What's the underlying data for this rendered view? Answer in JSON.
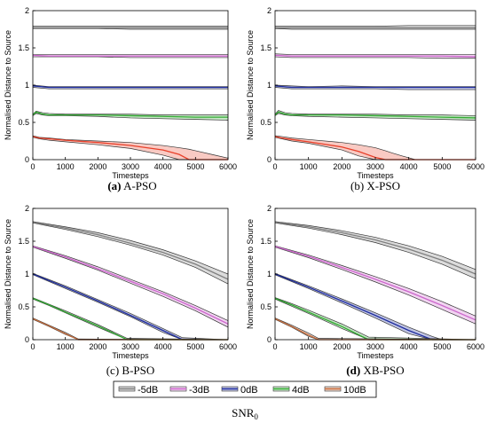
{
  "chart_data": [
    {
      "type": "area",
      "panel": "a",
      "caption_letter": "(a)",
      "caption_name": "A-PSO",
      "xlabel": "Timesteps",
      "ylabel": "Normalised Distance to Source",
      "xlim": [
        0,
        6000
      ],
      "ylim": [
        0,
        2
      ],
      "xticks": [
        0,
        1000,
        2000,
        3000,
        4000,
        5000,
        6000
      ],
      "yticks": [
        0,
        0.5,
        1,
        1.5,
        2
      ],
      "grid": false,
      "series": [
        {
          "name": "-5dB",
          "color": "#808080",
          "x": [
            0,
            500,
            1000,
            2000,
            3000,
            4000,
            5000,
            6000
          ],
          "mean": [
            1.77,
            1.77,
            1.77,
            1.77,
            1.77,
            1.77,
            1.77,
            1.77
          ],
          "lower": [
            1.76,
            1.76,
            1.76,
            1.76,
            1.75,
            1.75,
            1.75,
            1.75
          ],
          "upper": [
            1.79,
            1.79,
            1.79,
            1.79,
            1.79,
            1.79,
            1.79,
            1.79
          ]
        },
        {
          "name": "-3dB",
          "color": "#cc66cc",
          "x": [
            0,
            500,
            1000,
            2000,
            3000,
            4000,
            5000,
            6000
          ],
          "mean": [
            1.4,
            1.39,
            1.39,
            1.39,
            1.39,
            1.39,
            1.39,
            1.39
          ],
          "lower": [
            1.38,
            1.38,
            1.38,
            1.38,
            1.37,
            1.37,
            1.37,
            1.37
          ],
          "upper": [
            1.41,
            1.41,
            1.41,
            1.41,
            1.41,
            1.41,
            1.41,
            1.41
          ]
        },
        {
          "name": "0dB",
          "color": "#1f2d9e",
          "x": [
            0,
            500,
            1000,
            2000,
            3000,
            4000,
            5000,
            6000
          ],
          "mean": [
            0.99,
            0.97,
            0.97,
            0.97,
            0.97,
            0.97,
            0.97,
            0.97
          ],
          "lower": [
            0.97,
            0.95,
            0.95,
            0.95,
            0.95,
            0.95,
            0.95,
            0.95
          ],
          "upper": [
            1.0,
            0.98,
            0.98,
            0.98,
            0.98,
            0.98,
            0.98,
            0.98
          ]
        },
        {
          "name": "4dB",
          "color": "#33aa33",
          "x": [
            0,
            100,
            300,
            500,
            1000,
            2000,
            3000,
            4000,
            5000,
            6000
          ],
          "mean": [
            0.6,
            0.64,
            0.61,
            0.6,
            0.6,
            0.6,
            0.59,
            0.58,
            0.57,
            0.57
          ],
          "lower": [
            0.59,
            0.62,
            0.6,
            0.59,
            0.59,
            0.58,
            0.56,
            0.55,
            0.54,
            0.53
          ],
          "upper": [
            0.61,
            0.65,
            0.63,
            0.62,
            0.61,
            0.61,
            0.61,
            0.6,
            0.6,
            0.6
          ]
        },
        {
          "name": "10dB",
          "color": "#e8402a",
          "x": [
            0,
            200,
            500,
            1000,
            2000,
            3000,
            4000,
            4500,
            4800,
            5000,
            5500,
            6000
          ],
          "mean": [
            0.31,
            0.29,
            0.28,
            0.26,
            0.23,
            0.19,
            0.13,
            0.07,
            0.0,
            0.0,
            0.0,
            0.0
          ],
          "lower": [
            0.3,
            0.28,
            0.26,
            0.24,
            0.2,
            0.15,
            0.06,
            0.0,
            0.0,
            0.0,
            0.0,
            0.0
          ],
          "upper": [
            0.32,
            0.3,
            0.29,
            0.27,
            0.25,
            0.23,
            0.19,
            0.16,
            0.14,
            0.12,
            0.07,
            0.02
          ]
        }
      ]
    },
    {
      "type": "area",
      "panel": "b",
      "caption_letter": "(b)",
      "caption_name": "X-PSO",
      "xlabel": "Timesteps",
      "ylabel": "Normalised Distance to Source",
      "xlim": [
        0,
        6000
      ],
      "ylim": [
        0,
        2
      ],
      "xticks": [
        0,
        1000,
        2000,
        3000,
        4000,
        5000,
        6000
      ],
      "yticks": [
        0,
        0.5,
        1,
        1.5,
        2
      ],
      "grid": false,
      "series": [
        {
          "name": "-5dB",
          "color": "#808080",
          "x": [
            0,
            500,
            1000,
            2000,
            3000,
            4000,
            5000,
            6000
          ],
          "mean": [
            1.77,
            1.77,
            1.77,
            1.77,
            1.77,
            1.77,
            1.77,
            1.77
          ],
          "lower": [
            1.76,
            1.75,
            1.75,
            1.75,
            1.75,
            1.75,
            1.75,
            1.75
          ],
          "upper": [
            1.79,
            1.79,
            1.79,
            1.79,
            1.79,
            1.8,
            1.8,
            1.8
          ]
        },
        {
          "name": "-3dB",
          "color": "#cc66cc",
          "x": [
            0,
            500,
            1000,
            2000,
            3000,
            4000,
            5000,
            6000
          ],
          "mean": [
            1.4,
            1.39,
            1.39,
            1.39,
            1.39,
            1.39,
            1.39,
            1.38
          ],
          "lower": [
            1.38,
            1.37,
            1.37,
            1.37,
            1.37,
            1.37,
            1.36,
            1.36
          ],
          "upper": [
            1.42,
            1.41,
            1.41,
            1.41,
            1.41,
            1.41,
            1.41,
            1.41
          ]
        },
        {
          "name": "0dB",
          "color": "#1f2d9e",
          "x": [
            0,
            500,
            1000,
            2000,
            3000,
            4000,
            5000,
            6000
          ],
          "mean": [
            0.99,
            0.97,
            0.97,
            0.97,
            0.97,
            0.97,
            0.97,
            0.97
          ],
          "lower": [
            0.97,
            0.95,
            0.95,
            0.95,
            0.95,
            0.94,
            0.94,
            0.94
          ],
          "upper": [
            1.0,
            0.99,
            0.98,
            0.99,
            0.98,
            0.98,
            0.98,
            0.98
          ]
        },
        {
          "name": "4dB",
          "color": "#33aa33",
          "x": [
            0,
            100,
            300,
            500,
            1000,
            2000,
            3000,
            4000,
            5000,
            6000
          ],
          "mean": [
            0.6,
            0.64,
            0.61,
            0.6,
            0.6,
            0.6,
            0.59,
            0.58,
            0.57,
            0.56
          ],
          "lower": [
            0.59,
            0.62,
            0.6,
            0.59,
            0.58,
            0.57,
            0.56,
            0.55,
            0.54,
            0.53
          ],
          "upper": [
            0.61,
            0.66,
            0.63,
            0.62,
            0.61,
            0.61,
            0.61,
            0.6,
            0.6,
            0.59
          ]
        },
        {
          "name": "10dB",
          "color": "#e8402a",
          "x": [
            0,
            200,
            500,
            1000,
            2000,
            2500,
            3000,
            3300,
            3500,
            3800,
            4200,
            6000
          ],
          "mean": [
            0.31,
            0.29,
            0.27,
            0.24,
            0.17,
            0.11,
            0.03,
            0.0,
            0.0,
            0.0,
            0.0,
            0.0
          ],
          "lower": [
            0.3,
            0.28,
            0.25,
            0.22,
            0.13,
            0.05,
            0.0,
            0.0,
            0.0,
            0.0,
            0.0,
            0.0
          ],
          "upper": [
            0.32,
            0.31,
            0.29,
            0.27,
            0.23,
            0.2,
            0.16,
            0.12,
            0.09,
            0.05,
            0.0,
            0.0
          ]
        }
      ]
    },
    {
      "type": "area",
      "panel": "c",
      "caption_letter": "(c)",
      "caption_name": "B-PSO",
      "xlabel": "Timesteps",
      "ylabel": "Normalised Distance to Source",
      "xlim": [
        0,
        6000
      ],
      "ylim": [
        0,
        2
      ],
      "xticks": [
        0,
        1000,
        2000,
        3000,
        4000,
        5000,
        6000
      ],
      "yticks": [
        0,
        0.5,
        1,
        1.5,
        2
      ],
      "grid": false,
      "series": [
        {
          "name": "-5dB",
          "color": "#808080",
          "x": [
            0,
            1000,
            2000,
            3000,
            4000,
            5000,
            6000
          ],
          "mean": [
            1.79,
            1.7,
            1.6,
            1.47,
            1.33,
            1.15,
            0.92
          ],
          "lower": [
            1.78,
            1.68,
            1.57,
            1.44,
            1.29,
            1.1,
            0.85
          ],
          "upper": [
            1.8,
            1.72,
            1.63,
            1.51,
            1.37,
            1.2,
            1.0
          ]
        },
        {
          "name": "-3dB",
          "color": "#cc66cc",
          "x": [
            0,
            1000,
            2000,
            3000,
            4000,
            5000,
            6000
          ],
          "mean": [
            1.42,
            1.26,
            1.08,
            0.89,
            0.7,
            0.48,
            0.24
          ],
          "lower": [
            1.41,
            1.24,
            1.06,
            0.86,
            0.66,
            0.44,
            0.19
          ],
          "upper": [
            1.43,
            1.28,
            1.11,
            0.92,
            0.73,
            0.52,
            0.29
          ]
        },
        {
          "name": "0dB",
          "color": "#1f2d9e",
          "x": [
            0,
            1000,
            2000,
            3000,
            4000,
            4600,
            6000
          ],
          "mean": [
            1.0,
            0.8,
            0.59,
            0.37,
            0.14,
            0.0,
            0.0
          ],
          "lower": [
            0.99,
            0.78,
            0.57,
            0.35,
            0.11,
            0.0,
            0.0
          ],
          "upper": [
            1.01,
            0.82,
            0.61,
            0.4,
            0.17,
            0.03,
            0.0
          ]
        },
        {
          "name": "4dB",
          "color": "#33aa33",
          "x": [
            0,
            500,
            1000,
            2000,
            2900,
            6000
          ],
          "mean": [
            0.63,
            0.53,
            0.42,
            0.21,
            0.0,
            0.0
          ],
          "lower": [
            0.62,
            0.52,
            0.41,
            0.19,
            0.0,
            0.0
          ],
          "upper": [
            0.64,
            0.54,
            0.44,
            0.23,
            0.02,
            0.0
          ]
        },
        {
          "name": "10dB",
          "color": "#c46a3a",
          "x": [
            0,
            500,
            1000,
            1400,
            6000
          ],
          "mean": [
            0.32,
            0.21,
            0.09,
            0.0,
            0.0
          ],
          "lower": [
            0.31,
            0.2,
            0.08,
            0.0,
            0.0
          ],
          "upper": [
            0.33,
            0.22,
            0.11,
            0.01,
            0.0
          ]
        }
      ]
    },
    {
      "type": "area",
      "panel": "d",
      "caption_letter": "(d)",
      "caption_name": "XB-PSO",
      "xlabel": "Timesteps",
      "ylabel": "Normalised Distance to Source",
      "xlim": [
        0,
        6000
      ],
      "ylim": [
        0,
        2
      ],
      "xticks": [
        0,
        1000,
        2000,
        3000,
        4000,
        5000,
        6000
      ],
      "yticks": [
        0,
        0.5,
        1,
        1.5,
        2
      ],
      "grid": false,
      "series": [
        {
          "name": "-5dB",
          "color": "#808080",
          "x": [
            0,
            1000,
            2000,
            3000,
            4000,
            5000,
            6000
          ],
          "mean": [
            1.79,
            1.72,
            1.63,
            1.52,
            1.38,
            1.21,
            1.0
          ],
          "lower": [
            1.78,
            1.7,
            1.6,
            1.48,
            1.33,
            1.15,
            0.93
          ],
          "upper": [
            1.8,
            1.74,
            1.66,
            1.56,
            1.43,
            1.27,
            1.07
          ]
        },
        {
          "name": "-3dB",
          "color": "#cc66cc",
          "x": [
            0,
            1000,
            2000,
            3000,
            4000,
            5000,
            6000
          ],
          "mean": [
            1.42,
            1.27,
            1.1,
            0.92,
            0.73,
            0.52,
            0.3
          ],
          "lower": [
            1.41,
            1.25,
            1.07,
            0.88,
            0.68,
            0.46,
            0.24
          ],
          "upper": [
            1.43,
            1.29,
            1.13,
            0.96,
            0.78,
            0.58,
            0.36
          ]
        },
        {
          "name": "0dB",
          "color": "#1f2d9e",
          "x": [
            0,
            1000,
            2000,
            3000,
            4000,
            4700,
            5000,
            6000
          ],
          "mean": [
            1.0,
            0.8,
            0.59,
            0.37,
            0.14,
            0.0,
            0.0,
            0.0
          ],
          "lower": [
            0.99,
            0.78,
            0.56,
            0.33,
            0.09,
            0.0,
            0.0,
            0.0
          ],
          "upper": [
            1.01,
            0.82,
            0.62,
            0.41,
            0.19,
            0.05,
            0.0,
            0.0
          ]
        },
        {
          "name": "4dB",
          "color": "#33aa33",
          "x": [
            0,
            500,
            1000,
            2000,
            2800,
            6000
          ],
          "mean": [
            0.63,
            0.53,
            0.42,
            0.2,
            0.0,
            0.0
          ],
          "lower": [
            0.62,
            0.51,
            0.4,
            0.17,
            0.0,
            0.0
          ],
          "upper": [
            0.64,
            0.55,
            0.45,
            0.24,
            0.04,
            0.0
          ]
        },
        {
          "name": "10dB",
          "color": "#c46a3a",
          "x": [
            0,
            500,
            1000,
            1300,
            6000
          ],
          "mean": [
            0.32,
            0.2,
            0.07,
            0.0,
            0.0
          ],
          "lower": [
            0.31,
            0.19,
            0.05,
            0.0,
            0.0
          ],
          "upper": [
            0.33,
            0.22,
            0.1,
            0.02,
            0.0
          ]
        }
      ]
    }
  ],
  "legend": {
    "placement": "bottom-center",
    "items": [
      {
        "label": "-5dB",
        "color": "#808080"
      },
      {
        "label": "-3dB",
        "color": "#cc66cc"
      },
      {
        "label": "0dB",
        "color": "#1f2d9e"
      },
      {
        "label": "4dB",
        "color": "#33aa33"
      },
      {
        "label": "10dB",
        "color": "#c46a3a"
      }
    ],
    "title_main": "SNR",
    "title_sub": "0"
  }
}
